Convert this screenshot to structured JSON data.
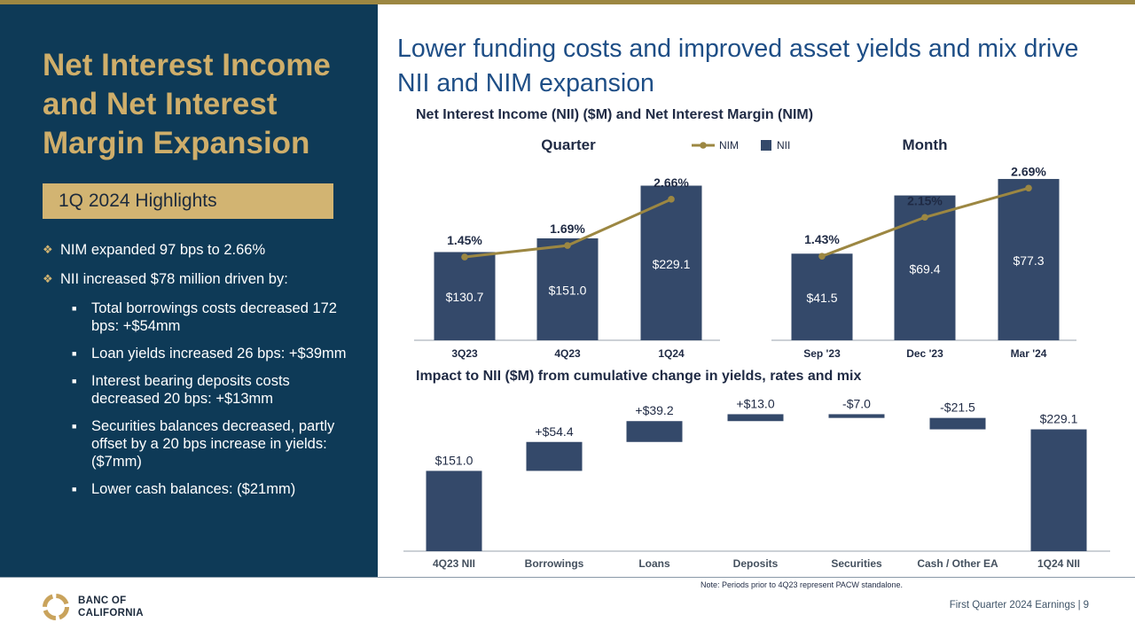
{
  "left": {
    "title": "Net Interest Income and Net Interest Margin Expansion",
    "highlights_label": "1Q 2024 Highlights",
    "bullets": [
      "NIM expanded 97 bps to 2.66%",
      "NII increased $78 million driven by:"
    ],
    "sub_bullets": [
      "Total borrowings costs decreased 172 bps: +$54mm",
      "Loan yields increased 26 bps: +$39mm",
      "Interest bearing deposits costs decreased 20 bps: +$13mm",
      "Securities balances decreased, partly offset by a 20 bps increase in yields: ($7mm)",
      "Lower cash balances: ($21mm)"
    ]
  },
  "headline": "Lower funding costs and improved asset yields and mix drive NII and NIM expansion",
  "section1_title": "Net Interest Income (NII) ($M) and Net Interest Margin (NIM)",
  "section2_title": "Impact to NII ($M) from cumulative change in yields, rates and mix",
  "footer": {
    "note": "Note: Periods prior to 4Q23 represent PACW standalone.",
    "text": "First Quarter 2024 Earnings",
    "separator": "|",
    "page": "9",
    "logo_line1": "BANC OF",
    "logo_line2": "CALIFORNIA"
  },
  "colors": {
    "navy": "#0e3a57",
    "gold": "#9c8742",
    "bar": "#34496a",
    "accent_gold": "#d2b472",
    "headline": "#1e4e86"
  },
  "chart_data": [
    {
      "type": "bar",
      "title": "Quarter",
      "categories": [
        "3Q23",
        "4Q23",
        "1Q24"
      ],
      "series": [
        {
          "name": "NII",
          "values": [
            130.7,
            151.0,
            229.1
          ],
          "labels": [
            "$130.7",
            "$151.0",
            "$229.1"
          ]
        },
        {
          "name": "NIM",
          "type": "line",
          "values": [
            1.45,
            1.69,
            2.66
          ],
          "labels": [
            "1.45%",
            "1.69%",
            "2.66%"
          ]
        }
      ],
      "legend": [
        "NIM",
        "NII"
      ],
      "legend_position": "top"
    },
    {
      "type": "bar",
      "title": "Month",
      "categories": [
        "Sep '23",
        "Dec '23",
        "Mar '24"
      ],
      "series": [
        {
          "name": "NII",
          "values": [
            41.5,
            69.4,
            77.3
          ],
          "labels": [
            "$41.5",
            "$69.4",
            "$77.3"
          ]
        },
        {
          "name": "NIM",
          "type": "line",
          "values": [
            1.43,
            2.15,
            2.69
          ],
          "labels": [
            "1.43%",
            "2.15%",
            "2.69%"
          ]
        }
      ]
    },
    {
      "type": "bar",
      "subtype": "waterfall",
      "categories": [
        "4Q23 NII",
        "Borrowings",
        "Loans",
        "Deposits",
        "Securities",
        "Cash / Other EA",
        "1Q24 NII"
      ],
      "values": [
        151.0,
        54.4,
        39.2,
        13.0,
        -7.0,
        -21.5,
        229.1
      ],
      "labels": [
        "$151.0",
        "+$54.4",
        "+$39.2",
        "+$13.0",
        "-$7.0",
        "-$21.5",
        "$229.1"
      ],
      "kinds": [
        "total",
        "delta",
        "delta",
        "delta",
        "delta",
        "delta",
        "total"
      ]
    }
  ]
}
